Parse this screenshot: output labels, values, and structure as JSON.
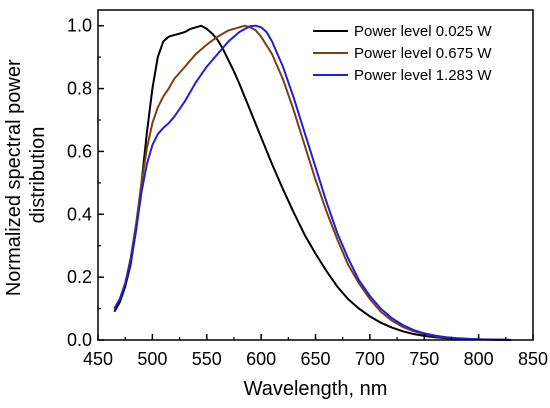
{
  "chart_data": {
    "type": "line",
    "title": "",
    "xlabel": "Wavelength, nm",
    "ylabel_lines": [
      "Normalized spectral power",
      "distribution"
    ],
    "xlim": [
      450,
      850
    ],
    "ylim": [
      0.0,
      1.05
    ],
    "xticks": [
      450,
      500,
      550,
      600,
      650,
      700,
      750,
      800,
      850
    ],
    "yticks": [
      "0.0",
      "0.2",
      "0.4",
      "0.6",
      "0.8",
      "1.0"
    ],
    "grid": false,
    "legend_position": "top-right",
    "series": [
      {
        "name": "Power level 0.025 W",
        "color": "#000000",
        "x": [
          465,
          470,
          475,
          480,
          485,
          490,
          495,
          500,
          505,
          510,
          515,
          520,
          525,
          530,
          535,
          540,
          545,
          550,
          555,
          560,
          565,
          570,
          575,
          580,
          590,
          600,
          610,
          620,
          630,
          640,
          650,
          660,
          670,
          680,
          690,
          700,
          710,
          720,
          730,
          740,
          750,
          760,
          770,
          780,
          790,
          800,
          820,
          830
        ],
        "y": [
          0.09,
          0.12,
          0.17,
          0.24,
          0.35,
          0.5,
          0.66,
          0.8,
          0.9,
          0.95,
          0.965,
          0.97,
          0.975,
          0.98,
          0.99,
          0.995,
          1.0,
          0.99,
          0.975,
          0.955,
          0.925,
          0.89,
          0.855,
          0.815,
          0.73,
          0.645,
          0.56,
          0.48,
          0.405,
          0.335,
          0.275,
          0.22,
          0.17,
          0.13,
          0.1,
          0.075,
          0.055,
          0.04,
          0.028,
          0.019,
          0.013,
          0.009,
          0.006,
          0.004,
          0.003,
          0.002,
          0.001,
          0.0
        ]
      },
      {
        "name": "Power level 0.675 W",
        "color": "#7b3f14",
        "x": [
          465,
          470,
          475,
          480,
          485,
          490,
          495,
          500,
          505,
          510,
          515,
          520,
          530,
          540,
          550,
          560,
          570,
          580,
          585,
          590,
          595,
          600,
          610,
          620,
          630,
          640,
          650,
          660,
          670,
          680,
          690,
          700,
          710,
          720,
          730,
          740,
          750,
          760,
          770,
          780,
          790,
          800,
          820,
          830
        ],
        "y": [
          0.1,
          0.13,
          0.18,
          0.26,
          0.37,
          0.5,
          0.61,
          0.69,
          0.74,
          0.775,
          0.8,
          0.83,
          0.87,
          0.91,
          0.94,
          0.965,
          0.985,
          0.995,
          1.0,
          0.995,
          0.985,
          0.965,
          0.91,
          0.83,
          0.73,
          0.62,
          0.51,
          0.41,
          0.32,
          0.24,
          0.18,
          0.13,
          0.09,
          0.062,
          0.042,
          0.028,
          0.019,
          0.012,
          0.008,
          0.005,
          0.003,
          0.002,
          0.001,
          0.0
        ]
      },
      {
        "name": "Power level 1.283 W",
        "color": "#1f1fdc",
        "x": [
          465,
          470,
          475,
          480,
          485,
          490,
          495,
          500,
          505,
          510,
          515,
          520,
          530,
          540,
          550,
          560,
          570,
          580,
          585,
          590,
          595,
          600,
          605,
          610,
          620,
          630,
          640,
          650,
          660,
          670,
          680,
          690,
          700,
          710,
          720,
          730,
          740,
          750,
          760,
          770,
          780,
          790,
          800,
          820,
          830
        ],
        "y": [
          0.1,
          0.13,
          0.18,
          0.25,
          0.35,
          0.47,
          0.56,
          0.62,
          0.655,
          0.675,
          0.69,
          0.71,
          0.76,
          0.82,
          0.87,
          0.91,
          0.95,
          0.98,
          0.99,
          0.998,
          1.0,
          0.995,
          0.98,
          0.95,
          0.87,
          0.77,
          0.66,
          0.55,
          0.44,
          0.34,
          0.26,
          0.19,
          0.14,
          0.1,
          0.07,
          0.048,
          0.032,
          0.021,
          0.014,
          0.009,
          0.006,
          0.004,
          0.002,
          0.001,
          0.0
        ]
      }
    ]
  }
}
